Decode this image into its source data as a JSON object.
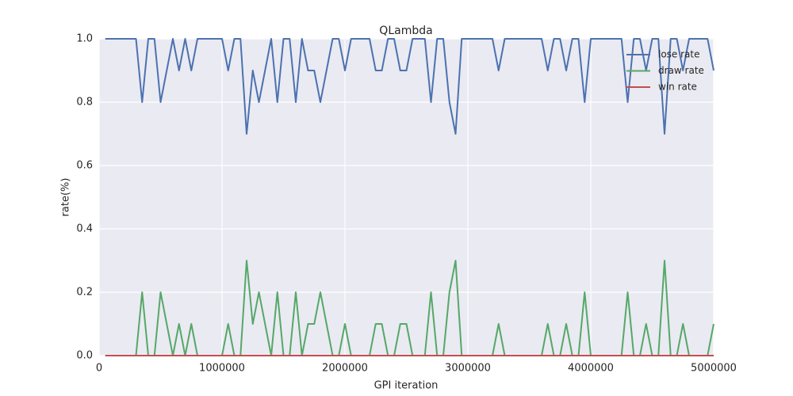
{
  "chart_data": {
    "type": "line",
    "title": "QLambda",
    "xlabel": "GPI iteration",
    "ylabel": "rate(%)",
    "x": [
      50000,
      100000,
      150000,
      200000,
      250000,
      300000,
      350000,
      400000,
      450000,
      500000,
      550000,
      600000,
      650000,
      700000,
      750000,
      800000,
      850000,
      900000,
      950000,
      1000000,
      1050000,
      1100000,
      1150000,
      1200000,
      1250000,
      1300000,
      1350000,
      1400000,
      1450000,
      1500000,
      1550000,
      1600000,
      1650000,
      1700000,
      1750000,
      1800000,
      1850000,
      1900000,
      1950000,
      2000000,
      2050000,
      2100000,
      2150000,
      2200000,
      2250000,
      2300000,
      2350000,
      2400000,
      2450000,
      2500000,
      2550000,
      2600000,
      2650000,
      2700000,
      2750000,
      2800000,
      2850000,
      2900000,
      2950000,
      3000000,
      3050000,
      3100000,
      3150000,
      3200000,
      3250000,
      3300000,
      3350000,
      3400000,
      3450000,
      3500000,
      3550000,
      3600000,
      3650000,
      3700000,
      3750000,
      3800000,
      3850000,
      3900000,
      3950000,
      4000000,
      4050000,
      4100000,
      4150000,
      4200000,
      4250000,
      4300000,
      4350000,
      4400000,
      4450000,
      4500000,
      4550000,
      4600000,
      4650000,
      4700000,
      4750000,
      4800000,
      4850000,
      4900000,
      4950000,
      5000000
    ],
    "series": [
      {
        "name": "lose rate",
        "color": "#4c72b0",
        "values": [
          1,
          1,
          1,
          1,
          1,
          1,
          0.8,
          1,
          1,
          0.8,
          0.9,
          1,
          0.9,
          1,
          0.9,
          1,
          1,
          1,
          1,
          1,
          0.9,
          1,
          1,
          0.7,
          0.9,
          0.8,
          0.9,
          1,
          0.8,
          1,
          1,
          0.8,
          1,
          0.9,
          0.9,
          0.8,
          0.9,
          1,
          1,
          0.9,
          1,
          1,
          1,
          1,
          0.9,
          0.9,
          1,
          1,
          0.9,
          0.9,
          1,
          1,
          1,
          0.8,
          1,
          1,
          0.8,
          0.7,
          1,
          1,
          1,
          1,
          1,
          1,
          0.9,
          1,
          1,
          1,
          1,
          1,
          1,
          1,
          0.9,
          1,
          1,
          0.9,
          1,
          1,
          0.8,
          1,
          1,
          1,
          1,
          1,
          1,
          0.8,
          1,
          1,
          0.9,
          1,
          1,
          0.7,
          1,
          1,
          0.9,
          1,
          1,
          1,
          1,
          0.9
        ]
      },
      {
        "name": "draw rate",
        "color": "#55a868",
        "values": [
          0,
          0,
          0,
          0,
          0,
          0,
          0.2,
          0,
          0,
          0.2,
          0.1,
          0,
          0.1,
          0,
          0.1,
          0,
          0,
          0,
          0,
          0,
          0.1,
          0,
          0,
          0.3,
          0.1,
          0.2,
          0.1,
          0,
          0.2,
          0,
          0,
          0.2,
          0,
          0.1,
          0.1,
          0.2,
          0.1,
          0,
          0,
          0.1,
          0,
          0,
          0,
          0,
          0.1,
          0.1,
          0,
          0,
          0.1,
          0.1,
          0,
          0,
          0,
          0.2,
          0,
          0,
          0.2,
          0.3,
          0,
          0,
          0,
          0,
          0,
          0,
          0.1,
          0,
          0,
          0,
          0,
          0,
          0,
          0,
          0.1,
          0,
          0,
          0.1,
          0,
          0,
          0.2,
          0,
          0,
          0,
          0,
          0,
          0,
          0.2,
          0,
          0,
          0.1,
          0,
          0,
          0.3,
          0,
          0,
          0.1,
          0,
          0,
          0,
          0,
          0.1
        ]
      },
      {
        "name": "win rate",
        "color": "#c44e52",
        "values": [
          0,
          0,
          0,
          0,
          0,
          0,
          0,
          0,
          0,
          0,
          0,
          0,
          0,
          0,
          0,
          0,
          0,
          0,
          0,
          0,
          0,
          0,
          0,
          0,
          0,
          0,
          0,
          0,
          0,
          0,
          0,
          0,
          0,
          0,
          0,
          0,
          0,
          0,
          0,
          0,
          0,
          0,
          0,
          0,
          0,
          0,
          0,
          0,
          0,
          0,
          0,
          0,
          0,
          0,
          0,
          0,
          0,
          0,
          0,
          0,
          0,
          0,
          0,
          0,
          0,
          0,
          0,
          0,
          0,
          0,
          0,
          0,
          0,
          0,
          0,
          0,
          0,
          0,
          0,
          0,
          0,
          0,
          0,
          0,
          0,
          0,
          0,
          0,
          0,
          0,
          0,
          0,
          0,
          0,
          0,
          0,
          0,
          0,
          0,
          0
        ]
      }
    ],
    "xlim": [
      0,
      5000000
    ],
    "xticks": [
      0,
      1000000,
      2000000,
      3000000,
      4000000,
      5000000
    ],
    "ylim": [
      0,
      1
    ],
    "yticks": [
      {
        "value": 0,
        "label": "0.0"
      },
      0.2,
      0.4,
      0.6,
      0.8,
      {
        "value": 1,
        "label": "1.0"
      }
    ],
    "grid": true,
    "legend": "upper right"
  }
}
